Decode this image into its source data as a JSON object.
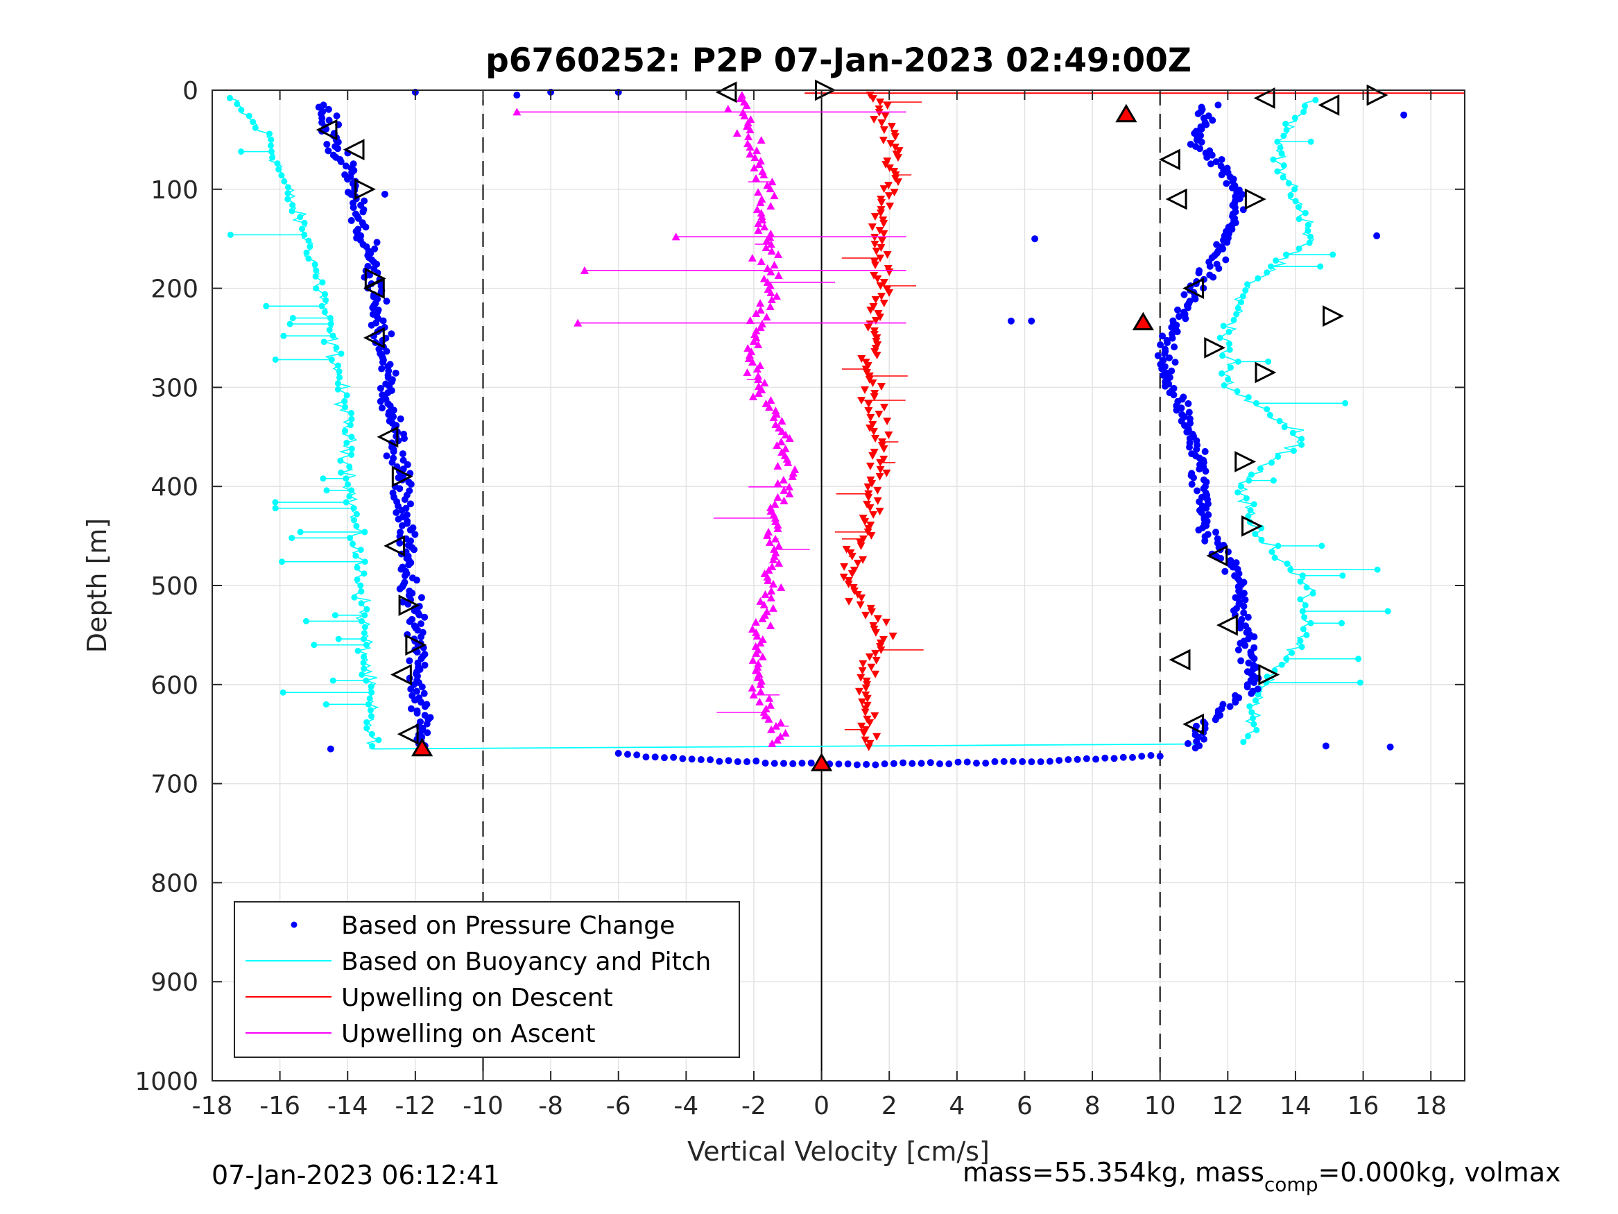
{
  "chart_data": {
    "type": "scatter",
    "title": "p6760252: P2P 07-Jan-2023 02:49:00Z",
    "xlabel": "Vertical Velocity [cm/s]",
    "ylabel": "Depth [m]",
    "xlim": [
      -18,
      19
    ],
    "ylim": [
      0,
      1000
    ],
    "y_reversed": true,
    "x_ticks": [
      "-18",
      "-16",
      "-14",
      "-12",
      "-10",
      "-8",
      "-6",
      "-4",
      "-2",
      "0",
      "2",
      "4",
      "6",
      "8",
      "10",
      "12",
      "14",
      "16",
      "18"
    ],
    "y_ticks": [
      "0",
      "100",
      "200",
      "300",
      "400",
      "500",
      "600",
      "700",
      "800",
      "900",
      "1000"
    ],
    "grid": true,
    "reference_lines": [
      {
        "x": -10,
        "style": "dashed"
      },
      {
        "x": 0,
        "style": "solid"
      },
      {
        "x": 10,
        "style": "dashed"
      }
    ],
    "legend": {
      "position": "bottom-left",
      "entries": [
        {
          "label": "Based on Pressure Change",
          "color": "#0000ff",
          "marker": "dot"
        },
        {
          "label": "Based on Buoyancy and Pitch",
          "color": "#00ffff",
          "marker": "line"
        },
        {
          "label": "Upwelling on Descent",
          "color": "#ff0000",
          "marker": "line"
        },
        {
          "label": "Upwelling on Ascent",
          "color": "#ff00ff",
          "marker": "line"
        }
      ]
    },
    "series": [
      {
        "name": "Based on Pressure Change",
        "color": "#0000ff",
        "marker": "dot",
        "profiles": [
          {
            "depth": [
              15,
              100,
              200,
              300,
              400,
              500,
              560,
              600,
              665
            ],
            "x": [
              -14.8,
              -13.8,
              -13.2,
              -12.8,
              -12.4,
              -12.2,
              -11.9,
              -12.0,
              -11.8
            ]
          },
          {
            "depth": [
              15,
              50,
              100,
              150,
              200,
              250,
              300,
              350,
              400,
              450,
              500,
              550,
              600,
              640,
              665
            ],
            "x": [
              11.5,
              11.0,
              12.3,
              12.0,
              11.0,
              10.2,
              10.3,
              11.0,
              11.2,
              11.5,
              12.4,
              12.5,
              12.8,
              11.3,
              11.0
            ]
          }
        ],
        "bottom_turn": {
          "depth": [
            670,
            675,
            678,
            680,
            680,
            680,
            678,
            675,
            672
          ],
          "x": [
            -6,
            -4,
            -2,
            -1,
            0,
            2,
            6,
            8,
            10
          ]
        },
        "outliers": [
          {
            "x": -12,
            "depth": 2
          },
          {
            "x": -9,
            "depth": 5
          },
          {
            "x": -8,
            "depth": 2
          },
          {
            "x": -6,
            "depth": 2
          },
          {
            "x": 6.3,
            "depth": 150
          },
          {
            "x": 5.6,
            "depth": 233
          },
          {
            "x": 6.2,
            "depth": 233
          },
          {
            "x": 14.9,
            "depth": 662
          },
          {
            "x": 16.8,
            "depth": 663
          },
          {
            "x": 16.4,
            "depth": 147
          },
          {
            "x": -14.5,
            "depth": 665
          },
          {
            "x": -12.9,
            "depth": 105
          },
          {
            "x": 17.2,
            "depth": 25
          }
        ]
      },
      {
        "name": "Based on Buoyancy and Pitch",
        "color": "#00ffff",
        "marker": "line-dot",
        "profiles": [
          {
            "depth": [
              8,
              50,
              100,
              150,
              200,
              250,
              300,
              350,
              400,
              450,
              500,
              550,
              600,
              665
            ],
            "x": [
              -17.5,
              -16.3,
              -15.8,
              -15.2,
              -14.8,
              -14.5,
              -14.2,
              -14.0,
              -13.9,
              -13.8,
              -13.6,
              -13.5,
              -13.4,
              -13.3
            ]
          },
          {
            "depth": [
              10,
              50,
              100,
              150,
              200,
              250,
              300,
              350,
              400,
              450,
              500,
              550,
              600,
              660
            ],
            "x": [
              14.5,
              13.5,
              13.8,
              14.5,
              12.5,
              12.0,
              12.0,
              14.3,
              12.3,
              13.0,
              14.3,
              14.3,
              13.0,
              12.5
            ]
          }
        ]
      },
      {
        "name": "Upwelling on Descent",
        "color": "#ff0000",
        "marker": "down-triangle",
        "depth": [
          5,
          50,
          100,
          150,
          200,
          250,
          300,
          350,
          400,
          450,
          500,
          550,
          600,
          665
        ],
        "x": [
          1.5,
          2.1,
          2.0,
          1.7,
          1.8,
          1.6,
          1.4,
          1.7,
          1.6,
          1.2,
          0.8,
          1.8,
          1.3,
          1.5
        ]
      },
      {
        "name": "Upwelling on Ascent",
        "color": "#ff00ff",
        "marker": "up-triangle",
        "depth": [
          660,
          600,
          550,
          500,
          450,
          400,
          350,
          300,
          250,
          200,
          150,
          100,
          50,
          5
        ],
        "x": [
          -1.2,
          -1.9,
          -1.8,
          -1.5,
          -1.6,
          -1.0,
          -1.1,
          -1.8,
          -2.0,
          -1.5,
          -1.7,
          -1.6,
          -2.0,
          -2.5
        ]
      }
    ],
    "markers": {
      "left_pointing": [
        {
          "x": -14.6,
          "depth": 40
        },
        {
          "x": -13.8,
          "depth": 60
        },
        {
          "x": -13.2,
          "depth": 200
        },
        {
          "x": -13.2,
          "depth": 250
        },
        {
          "x": -12.8,
          "depth": 350
        },
        {
          "x": -12.6,
          "depth": 460
        },
        {
          "x": -12.4,
          "depth": 590
        },
        {
          "x": -12.2,
          "depth": 650
        },
        {
          "x": 11.0,
          "depth": 640
        },
        {
          "x": 11.7,
          "depth": 470
        },
        {
          "x": 12.0,
          "depth": 540
        },
        {
          "x": 10.6,
          "depth": 575
        },
        {
          "x": 10.5,
          "depth": 110
        },
        {
          "x": 11.0,
          "depth": 200
        },
        {
          "x": 13.1,
          "depth": 8
        },
        {
          "x": 15.0,
          "depth": 15
        },
        {
          "x": 10.3,
          "depth": 70
        },
        {
          "x": -2.8,
          "depth": 2
        }
      ],
      "right_pointing": [
        {
          "x": -13.5,
          "depth": 100
        },
        {
          "x": -13.2,
          "depth": 190
        },
        {
          "x": -12.4,
          "depth": 390
        },
        {
          "x": -12.2,
          "depth": 520
        },
        {
          "x": -12.0,
          "depth": 560
        },
        {
          "x": 15.1,
          "depth": 228
        },
        {
          "x": 16.4,
          "depth": 5
        },
        {
          "x": 12.8,
          "depth": 110
        },
        {
          "x": 13.1,
          "depth": 285
        },
        {
          "x": 12.7,
          "depth": 440
        },
        {
          "x": 13.2,
          "depth": 590
        },
        {
          "x": 11.6,
          "depth": 260
        },
        {
          "x": 12.5,
          "depth": 375
        },
        {
          "x": 0.1,
          "depth": 0
        }
      ],
      "red_filled": [
        {
          "x": 9.0,
          "depth": 25
        },
        {
          "x": 9.5,
          "depth": 235
        },
        {
          "x": -11.8,
          "depth": 665
        },
        {
          "x": 0,
          "depth": 680
        }
      ]
    },
    "annotations": {
      "bottom_left": "07-Jan-2023 06:12:41",
      "bottom_right_main": "mass=55.354kg, mass",
      "bottom_right_sub": "comp",
      "bottom_right_rest": "=0.000kg, volmax"
    }
  }
}
